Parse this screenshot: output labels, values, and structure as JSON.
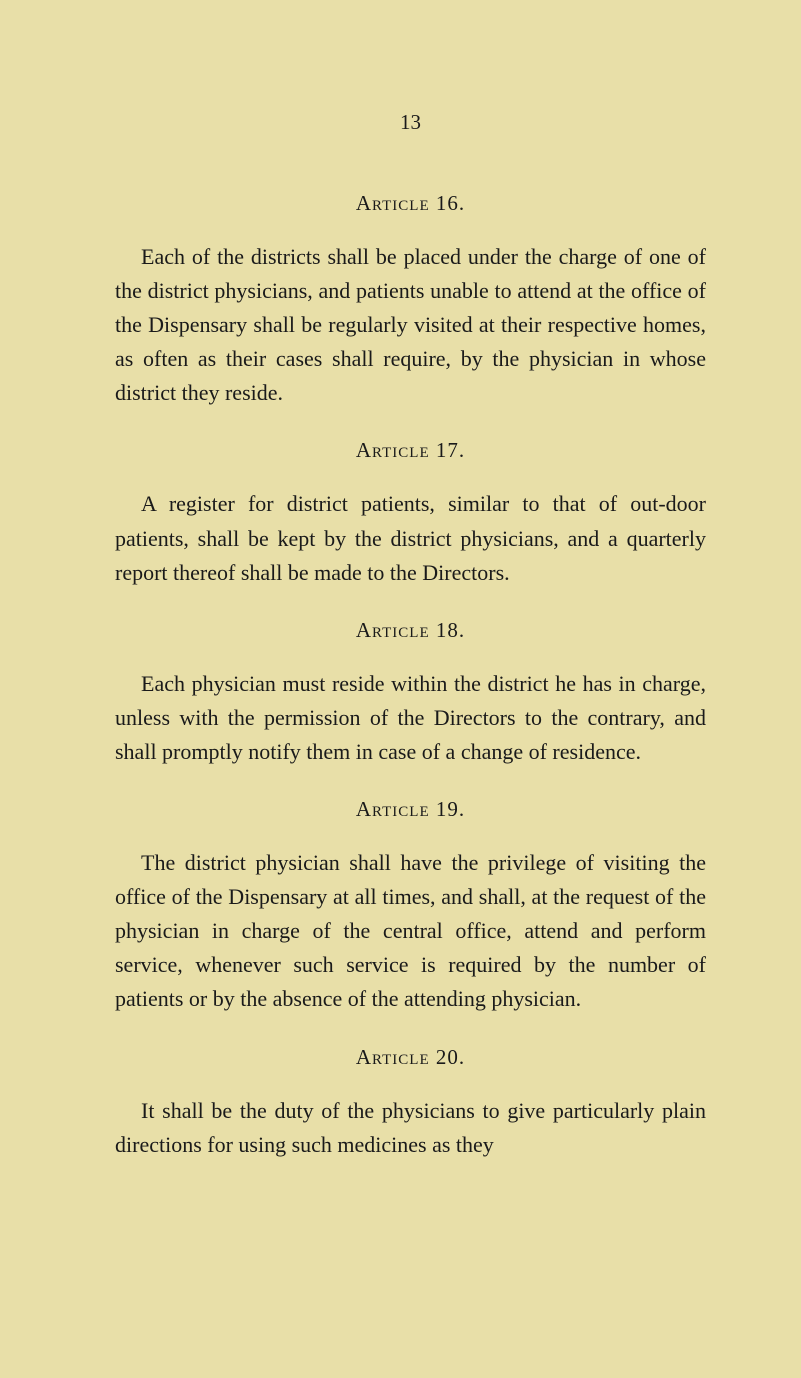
{
  "page_number": "13",
  "background_color": "#e8dfa8",
  "text_color": "#1a1a1a",
  "articles": [
    {
      "heading": "Article 16.",
      "body": "Each of the districts shall be placed under the charge of one of the district physicians, and patients unable to attend at the office of the Dispensary shall be regularly visited at their respective homes, as often as their cases shall require, by the physician in whose district they reside."
    },
    {
      "heading": "Article 17.",
      "body": "A register for district patients, similar to that of out-door patients, shall be kept by the district physicians, and a quarterly report thereof shall be made to the Directors."
    },
    {
      "heading": "Article 18.",
      "body": "Each physician must reside within the district he has in charge, unless with the permission of the Directors to the contrary, and shall promptly notify them in case of a change of residence."
    },
    {
      "heading": "Article 19.",
      "body": "The district physician shall have the privilege of visiting the office of the Dispensary at all times, and shall, at the request of the physician in charge of the central office, attend and perform service, whenever such service is required by the number of patients or by the absence of the attending physician."
    },
    {
      "heading": "Article 20.",
      "body": "It shall be the duty of the physicians to give particularly plain directions for using such medicines as they"
    }
  ]
}
